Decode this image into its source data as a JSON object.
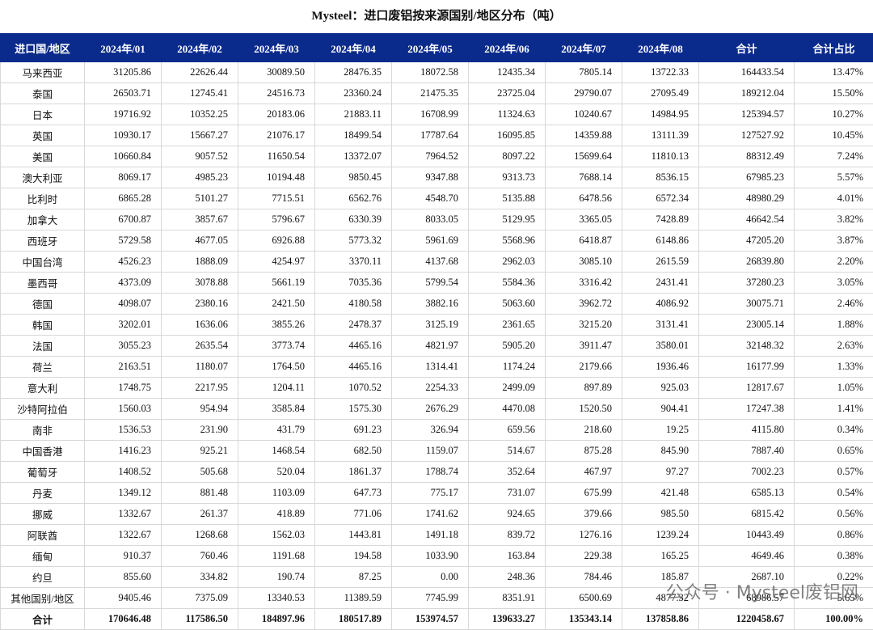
{
  "title": "Mysteel：进口废铝按来源国别/地区分布（吨）",
  "table": {
    "header": [
      "进口国/地区",
      "2024年/01",
      "2024年/02",
      "2024年/03",
      "2024年/04",
      "2024年/05",
      "2024年/06",
      "2024年/07",
      "2024年/08",
      "合计",
      "合计占比"
    ],
    "rows": [
      [
        "马来西亚",
        "31205.86",
        "22626.44",
        "30089.50",
        "28476.35",
        "18072.58",
        "12435.34",
        "7805.14",
        "13722.33",
        "164433.54",
        "13.47%"
      ],
      [
        "泰国",
        "26503.71",
        "12745.41",
        "24516.73",
        "23360.24",
        "21475.35",
        "23725.04",
        "29790.07",
        "27095.49",
        "189212.04",
        "15.50%"
      ],
      [
        "日本",
        "19716.92",
        "10352.25",
        "20183.06",
        "21883.11",
        "16708.99",
        "11324.63",
        "10240.67",
        "14984.95",
        "125394.57",
        "10.27%"
      ],
      [
        "英国",
        "10930.17",
        "15667.27",
        "21076.17",
        "18499.54",
        "17787.64",
        "16095.85",
        "14359.88",
        "13111.39",
        "127527.92",
        "10.45%"
      ],
      [
        "美国",
        "10660.84",
        "9057.52",
        "11650.54",
        "13372.07",
        "7964.52",
        "8097.22",
        "15699.64",
        "11810.13",
        "88312.49",
        "7.24%"
      ],
      [
        "澳大利亚",
        "8069.17",
        "4985.23",
        "10194.48",
        "9850.45",
        "9347.88",
        "9313.73",
        "7688.14",
        "8536.15",
        "67985.23",
        "5.57%"
      ],
      [
        "比利时",
        "6865.28",
        "5101.27",
        "7715.51",
        "6562.76",
        "4548.70",
        "5135.88",
        "6478.56",
        "6572.34",
        "48980.29",
        "4.01%"
      ],
      [
        "加拿大",
        "6700.87",
        "3857.67",
        "5796.67",
        "6330.39",
        "8033.05",
        "5129.95",
        "3365.05",
        "7428.89",
        "46642.54",
        "3.82%"
      ],
      [
        "西班牙",
        "5729.58",
        "4677.05",
        "6926.88",
        "5773.32",
        "5961.69",
        "5568.96",
        "6418.87",
        "6148.86",
        "47205.20",
        "3.87%"
      ],
      [
        "中国台湾",
        "4526.23",
        "1888.09",
        "4254.97",
        "3370.11",
        "4137.68",
        "2962.03",
        "3085.10",
        "2615.59",
        "26839.80",
        "2.20%"
      ],
      [
        "墨西哥",
        "4373.09",
        "3078.88",
        "5661.19",
        "7035.36",
        "5799.54",
        "5584.36",
        "3316.42",
        "2431.41",
        "37280.23",
        "3.05%"
      ],
      [
        "德国",
        "4098.07",
        "2380.16",
        "2421.50",
        "4180.58",
        "3882.16",
        "5063.60",
        "3962.72",
        "4086.92",
        "30075.71",
        "2.46%"
      ],
      [
        "韩国",
        "3202.01",
        "1636.06",
        "3855.26",
        "2478.37",
        "3125.19",
        "2361.65",
        "3215.20",
        "3131.41",
        "23005.14",
        "1.88%"
      ],
      [
        "法国",
        "3055.23",
        "2635.54",
        "3773.74",
        "4465.16",
        "4821.97",
        "5905.20",
        "3911.47",
        "3580.01",
        "32148.32",
        "2.63%"
      ],
      [
        "荷兰",
        "2163.51",
        "1180.07",
        "1764.50",
        "4465.16",
        "1314.41",
        "1174.24",
        "2179.66",
        "1936.46",
        "16177.99",
        "1.33%"
      ],
      [
        "意大利",
        "1748.75",
        "2217.95",
        "1204.11",
        "1070.52",
        "2254.33",
        "2499.09",
        "897.89",
        "925.03",
        "12817.67",
        "1.05%"
      ],
      [
        "沙特阿拉伯",
        "1560.03",
        "954.94",
        "3585.84",
        "1575.30",
        "2676.29",
        "4470.08",
        "1520.50",
        "904.41",
        "17247.38",
        "1.41%"
      ],
      [
        "南非",
        "1536.53",
        "231.90",
        "431.79",
        "691.23",
        "326.94",
        "659.56",
        "218.60",
        "19.25",
        "4115.80",
        "0.34%"
      ],
      [
        "中国香港",
        "1416.23",
        "925.21",
        "1468.54",
        "682.50",
        "1159.07",
        "514.67",
        "875.28",
        "845.90",
        "7887.40",
        "0.65%"
      ],
      [
        "葡萄牙",
        "1408.52",
        "505.68",
        "520.04",
        "1861.37",
        "1788.74",
        "352.64",
        "467.97",
        "97.27",
        "7002.23",
        "0.57%"
      ],
      [
        "丹麦",
        "1349.12",
        "881.48",
        "1103.09",
        "647.73",
        "775.17",
        "731.07",
        "675.99",
        "421.48",
        "6585.13",
        "0.54%"
      ],
      [
        "挪威",
        "1332.67",
        "261.37",
        "418.89",
        "771.06",
        "1741.62",
        "924.65",
        "379.66",
        "985.50",
        "6815.42",
        "0.56%"
      ],
      [
        "阿联酋",
        "1322.67",
        "1268.68",
        "1562.03",
        "1443.81",
        "1491.18",
        "839.72",
        "1276.16",
        "1239.24",
        "10443.49",
        "0.86%"
      ],
      [
        "缅甸",
        "910.37",
        "760.46",
        "1191.68",
        "194.58",
        "1033.90",
        "163.84",
        "229.38",
        "165.25",
        "4649.46",
        "0.38%"
      ],
      [
        "约旦",
        "855.60",
        "334.82",
        "190.74",
        "87.25",
        "0.00",
        "248.36",
        "784.46",
        "185.87",
        "2687.10",
        "0.22%"
      ],
      [
        "其他国别/地区",
        "9405.46",
        "7375.09",
        "13340.53",
        "11389.59",
        "7745.99",
        "8351.91",
        "6500.69",
        "4877.32",
        "68986.57",
        "5.65%"
      ],
      [
        "合计",
        "170646.48",
        "117586.50",
        "184897.96",
        "180517.89",
        "153974.57",
        "139633.27",
        "135343.14",
        "137858.86",
        "1220458.67",
        "100.00%"
      ]
    ]
  },
  "watermark": "公众号 · Mysteel废铝网"
}
